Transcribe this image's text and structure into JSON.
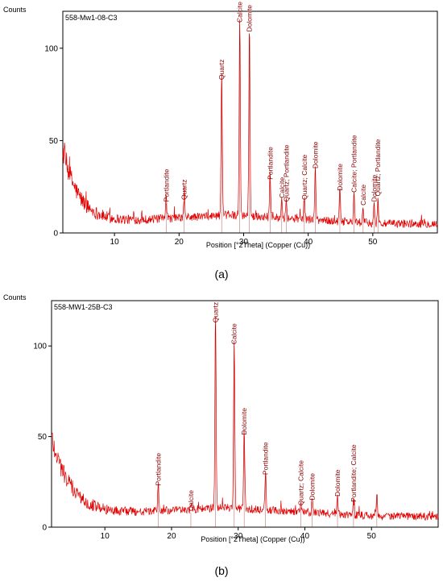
{
  "chart_data": [
    {
      "type": "line",
      "panel_label": "(a)",
      "sample": "558-Mw1-08-C3",
      "ylabel": "Counts",
      "xlabel": "Position [°2Theta] (Copper (Cu))",
      "xlim": [
        2,
        60
      ],
      "ylim": [
        0,
        120
      ],
      "xticks": [
        10,
        20,
        30,
        40,
        50
      ],
      "yticks": [
        0,
        50,
        100
      ],
      "line_color": "#e00000",
      "background": {
        "start": 45,
        "decay": 2.6,
        "floor": 5
      },
      "peaks": [
        {
          "x": 18.0,
          "y": 16,
          "label": "Portlandite"
        },
        {
          "x": 20.8,
          "y": 17,
          "label": "Quartz"
        },
        {
          "x": 26.6,
          "y": 82,
          "label": "Quartz"
        },
        {
          "x": 29.4,
          "y": 113,
          "label": "Calcite"
        },
        {
          "x": 30.9,
          "y": 108,
          "label": "Dolomite"
        },
        {
          "x": 34.1,
          "y": 28,
          "label": "Portlandite"
        },
        {
          "x": 35.9,
          "y": 18,
          "label": "Calcite"
        },
        {
          "x": 36.6,
          "y": 16,
          "label": "Quartz; Portlandite"
        },
        {
          "x": 39.4,
          "y": 17,
          "label": "Quartz; Calcite"
        },
        {
          "x": 41.1,
          "y": 34,
          "label": "Dolomite"
        },
        {
          "x": 44.9,
          "y": 22,
          "label": "Dolomite"
        },
        {
          "x": 47.1,
          "y": 21,
          "label": "Calcite; Portlandite"
        },
        {
          "x": 48.5,
          "y": 14,
          "label": "Calcite"
        },
        {
          "x": 50.2,
          "y": 16,
          "label": "Dolomite"
        },
        {
          "x": 50.8,
          "y": 19,
          "label": "Quartz; Portlandite"
        }
      ]
    },
    {
      "type": "line",
      "panel_label": "(b)",
      "sample": "558-MW1-25B-C3",
      "ylabel": "Counts",
      "xlabel": "Position [°2Theta] (Copper (Cu))",
      "xlim": [
        2,
        60
      ],
      "ylim": [
        0,
        125
      ],
      "xticks": [
        10,
        20,
        30,
        40,
        50
      ],
      "yticks": [
        0,
        50,
        100
      ],
      "line_color": "#e00000",
      "background": {
        "start": 50,
        "decay": 3.0,
        "floor": 6
      },
      "peaks": [
        {
          "x": 18.0,
          "y": 22,
          "label": "Portlandite"
        },
        {
          "x": 22.9,
          "y": 8,
          "label": "Calcite"
        },
        {
          "x": 26.6,
          "y": 112,
          "label": "Quartz"
        },
        {
          "x": 29.4,
          "y": 100,
          "label": "Calcite"
        },
        {
          "x": 30.9,
          "y": 50,
          "label": "Dolomite"
        },
        {
          "x": 34.1,
          "y": 28,
          "label": "Portlandite"
        },
        {
          "x": 39.4,
          "y": 11,
          "label": "Quartz; Calcite"
        },
        {
          "x": 41.1,
          "y": 14,
          "label": "Dolomite"
        },
        {
          "x": 44.9,
          "y": 16,
          "label": "Dolomite"
        },
        {
          "x": 47.3,
          "y": 13,
          "label": "Portlandite; Calcite"
        },
        {
          "x": 50.8,
          "y": 18,
          "label": ""
        }
      ]
    }
  ]
}
